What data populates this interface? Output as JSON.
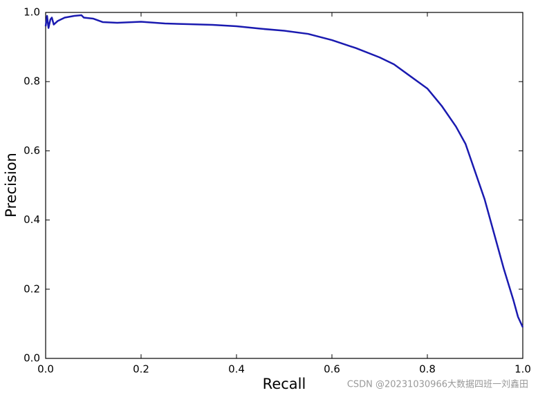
{
  "chart_data": {
    "type": "line",
    "x_label": "Recall",
    "y_label": "Precision",
    "x": [
      0,
      0.003,
      0.006,
      0.01,
      0.013,
      0.017,
      0.025,
      0.04,
      0.06,
      0.075,
      0.08,
      0.1,
      0.12,
      0.15,
      0.2,
      0.25,
      0.3,
      0.35,
      0.4,
      0.45,
      0.5,
      0.55,
      0.6,
      0.65,
      0.7,
      0.73,
      0.76,
      0.8,
      0.83,
      0.86,
      0.88,
      0.9,
      0.92,
      0.94,
      0.96,
      0.98,
      0.99,
      1.0
    ],
    "values": [
      0.96,
      0.99,
      0.955,
      0.98,
      0.985,
      0.965,
      0.975,
      0.985,
      0.99,
      0.992,
      0.985,
      0.982,
      0.972,
      0.97,
      0.973,
      0.968,
      0.966,
      0.964,
      0.96,
      0.953,
      0.947,
      0.938,
      0.92,
      0.897,
      0.87,
      0.85,
      0.82,
      0.78,
      0.73,
      0.67,
      0.62,
      0.54,
      0.46,
      0.36,
      0.26,
      0.17,
      0.12,
      0.09
    ],
    "color": "#1a1ab0",
    "xlim": [
      0,
      1
    ],
    "ylim": [
      0,
      1
    ],
    "xticks": [
      {
        "value": 0,
        "label": "0.0"
      },
      0.2,
      0.4,
      0.6,
      0.8,
      {
        "value": 1,
        "label": "1.0"
      }
    ],
    "yticks": [
      {
        "value": 0,
        "label": "0.0"
      },
      0.2,
      0.4,
      0.6,
      0.8,
      {
        "value": 1,
        "label": "1.0"
      }
    ],
    "grid": false,
    "watermark": "CSDN @20231030966大数据四班一刘鑫田"
  }
}
